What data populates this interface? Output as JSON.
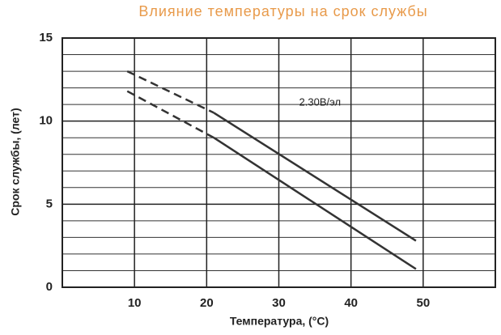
{
  "chart_data": {
    "type": "line",
    "title": "Влияние температуры на срок службы",
    "xlabel": "Температура, (°C)",
    "ylabel": "Срок службы, (лет)",
    "annotation": "2.30В/эл",
    "xlim": [
      0,
      60
    ],
    "xticks": [
      10,
      20,
      30,
      40,
      50
    ],
    "ylim": [
      0,
      15
    ],
    "yticks": [
      0,
      5,
      10,
      15
    ],
    "yminorticks": [
      1,
      2,
      3,
      4,
      6,
      7,
      8,
      9,
      11,
      12,
      13,
      14
    ],
    "grid": true,
    "series": [
      {
        "color": "#333333",
        "dashed": true,
        "x": [
          9,
          21
        ],
        "values": [
          13.0,
          10.5
        ]
      },
      {
        "color": "#333333",
        "dashed": false,
        "x": [
          21,
          49
        ],
        "values": [
          10.5,
          2.8
        ]
      },
      {
        "color": "#333333",
        "dashed": true,
        "x": [
          9,
          21
        ],
        "values": [
          11.8,
          9.0
        ]
      },
      {
        "color": "#333333",
        "dashed": false,
        "x": [
          21,
          49
        ],
        "values": [
          9.0,
          1.1
        ]
      }
    ]
  }
}
